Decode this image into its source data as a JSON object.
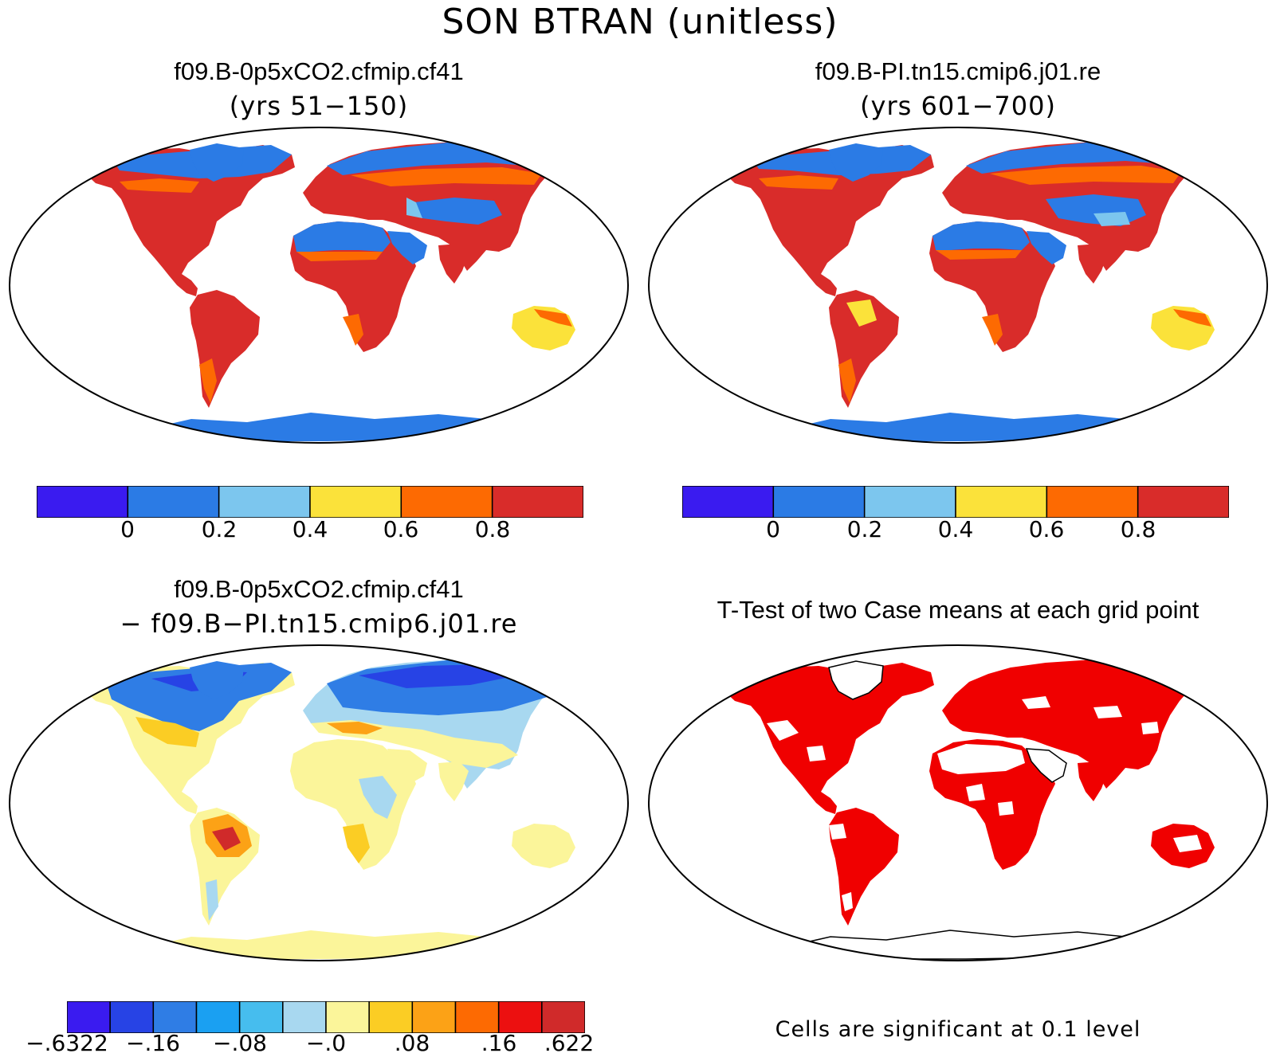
{
  "figure": {
    "title": "SON BTRAN (unitless)",
    "colors": {
      "deep_blue": "#3a1bf0",
      "blue": "#2b7be5",
      "light_blue": "#7cc6ee",
      "yellow": "#fbe23a",
      "orange": "#fd6a02",
      "red": "#d92c2a",
      "sig_red": "#f00000",
      "diff_pale_yellow": "#fbf59a"
    }
  },
  "panels": {
    "top_left": {
      "title": "f09.B-0p5xCO2.cfmip.cf41",
      "subtitle": "(yrs 51−150)",
      "colorbar": {
        "colors": [
          "#3a1bf0",
          "#2b7be5",
          "#7cc6ee",
          "#fbe23a",
          "#fd6a02",
          "#d92c2a"
        ],
        "labels": [
          "0",
          "0.2",
          "0.4",
          "0.6",
          "0.8"
        ]
      }
    },
    "top_right": {
      "title": "f09.B-PI.tn15.cmip6.j01.re",
      "subtitle": "(yrs 601−700)",
      "colorbar": {
        "colors": [
          "#3a1bf0",
          "#2b7be5",
          "#7cc6ee",
          "#fbe23a",
          "#fd6a02",
          "#d92c2a"
        ],
        "labels": [
          "0",
          "0.2",
          "0.4",
          "0.6",
          "0.8"
        ]
      }
    },
    "bottom_left": {
      "title": "f09.B-0p5xCO2.cfmip.cf41",
      "subtitle": "− f09.B−PI.tn15.cmip6.j01.re",
      "colorbar": {
        "colors": [
          "#3a1bf0",
          "#2743e5",
          "#2f7de5",
          "#1aa0f2",
          "#46bdee",
          "#a8d8f0",
          "#fbf59a",
          "#fbcd24",
          "#fca216",
          "#fd6a02",
          "#ec1010",
          "#d02a2a"
        ],
        "labels": [
          "−.6322",
          "−.16",
          "−.08",
          "−.0",
          ".08",
          ".16",
          ".622"
        ]
      }
    },
    "bottom_right": {
      "title": "T-Test of two Case means at each grid point",
      "note": "Cells are significant at 0.1 level"
    }
  }
}
